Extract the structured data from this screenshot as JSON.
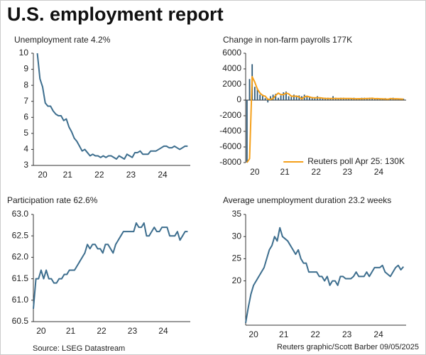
{
  "title": "U.S. employment report",
  "source": "Source: LSEG Datastream",
  "credit": "Reuters graphic/Scott Barber 09/05/2025",
  "chart_data": [
    {
      "type": "line",
      "title": "Unemployment rate 4.2%",
      "color": "#3d6e8e",
      "values": [
        10,
        8.4,
        7.9,
        6.9,
        6.7,
        6.7,
        6.4,
        6.2,
        6.1,
        6.1,
        5.8,
        5.9,
        5.4,
        5.1,
        4.7,
        4.5,
        4.2,
        3.9,
        4.0,
        3.8,
        3.6,
        3.7,
        3.6,
        3.6,
        3.5,
        3.6,
        3.5,
        3.6,
        3.6,
        3.5,
        3.4,
        3.6,
        3.5,
        3.4,
        3.7,
        3.6,
        3.5,
        3.8,
        3.8,
        3.9,
        3.7,
        3.7,
        3.7,
        3.9,
        3.9,
        3.9,
        4.0,
        4.1,
        4.2,
        4.2,
        4.1,
        4.1,
        4.2,
        4.1,
        4.0,
        4.1,
        4.2,
        4.2
      ],
      "xlim": [
        -1.5,
        58
      ],
      "xticks": [
        {
          "value": 2,
          "label": "20"
        },
        {
          "value": 11.5,
          "label": "21"
        },
        {
          "value": 23.5,
          "label": "22"
        },
        {
          "value": 35.5,
          "label": "23"
        },
        {
          "value": 47.5,
          "label": "24"
        }
      ],
      "ylim": [
        3,
        10
      ],
      "yticks": [
        3,
        4,
        5,
        6,
        7,
        8,
        9,
        10
      ]
    },
    {
      "type": "bar",
      "title": "Change in non-farm payrolls 177K",
      "legend": "lower right",
      "series": [
        {
          "type": "bar",
          "color": "#2d5877",
          "values": [
            -8000,
            2700,
            4600,
            1700,
            1500,
            700,
            700,
            250,
            -300,
            500,
            700,
            800,
            300,
            600,
            1000,
            1100,
            500,
            400,
            700,
            600,
            600,
            500,
            700,
            400,
            400,
            400,
            300,
            500,
            300,
            300,
            300,
            300,
            200,
            500,
            300,
            200,
            300,
            300,
            200,
            200,
            200,
            300,
            150,
            200,
            300,
            300,
            250,
            300,
            150,
            200,
            100,
            150,
            150,
            250,
            50,
            250,
            300,
            150,
            150,
            230,
            177
          ]
        },
        {
          "type": "line",
          "name": "Reuters poll Apr 25: 130K",
          "color": "#f5a01a",
          "values": [
            -8000,
            -7500,
            3000,
            2300,
            1400,
            900,
            600,
            500,
            100,
            100,
            200,
            600,
            900,
            700,
            700,
            900,
            800,
            500,
            500,
            500,
            400,
            150,
            400,
            500,
            400,
            300,
            300,
            300,
            300,
            250,
            200,
            200,
            200,
            200,
            200,
            200,
            200,
            200,
            200,
            200,
            200,
            170,
            170,
            180,
            170,
            180,
            200,
            200,
            240,
            180,
            190,
            175,
            165,
            140,
            110,
            200,
            160,
            170,
            160,
            135,
            130
          ]
        }
      ],
      "xlim": [
        -0.5,
        61
      ],
      "xticks": [
        {
          "value": 3,
          "label": "20"
        },
        {
          "value": 14.5,
          "label": "21"
        },
        {
          "value": 26.5,
          "label": "22"
        },
        {
          "value": 38.5,
          "label": "23"
        },
        {
          "value": 50.5,
          "label": "24"
        }
      ],
      "ylim": [
        -8000,
        6000
      ],
      "yticks": [
        -8000,
        -6000,
        -4000,
        -2000,
        0,
        2000,
        4000,
        6000
      ]
    },
    {
      "type": "line",
      "title": "Participation rate 62.6%",
      "color": "#3d6e8e",
      "values": [
        60.8,
        61.5,
        61.5,
        61.7,
        61.5,
        61.7,
        61.5,
        61.5,
        61.4,
        61.4,
        61.5,
        61.5,
        61.6,
        61.6,
        61.7,
        61.7,
        61.7,
        61.8,
        61.9,
        62.0,
        62.1,
        62.3,
        62.2,
        62.3,
        62.3,
        62.2,
        62.2,
        62.1,
        62.3,
        62.3,
        62.2,
        62.1,
        62.3,
        62.4,
        62.5,
        62.6,
        62.6,
        62.6,
        62.6,
        62.6,
        62.8,
        62.7,
        62.7,
        62.8,
        62.5,
        62.5,
        62.6,
        62.7,
        62.6,
        62.6,
        62.7,
        62.7,
        62.7,
        62.5,
        62.5,
        62.5,
        62.6,
        62.4,
        62.5,
        62.6,
        62.6
      ],
      "xlim": [
        0,
        61
      ],
      "xticks": [
        {
          "value": 3,
          "label": "20"
        },
        {
          "value": 14.5,
          "label": "21"
        },
        {
          "value": 26.5,
          "label": "22"
        },
        {
          "value": 38.5,
          "label": "23"
        },
        {
          "value": 50.5,
          "label": "24"
        }
      ],
      "ylim": [
        60.5,
        63
      ],
      "yticks": [
        60.5,
        {
          "value": 61,
          "label": "61.0"
        },
        61.5,
        {
          "value": 62,
          "label": "62.0"
        },
        62.5,
        {
          "value": 63,
          "label": "63.0"
        }
      ]
    },
    {
      "type": "line",
      "title": "Average unemployment duration 23.2 weeks",
      "color": "#3d6e8e",
      "values": [
        10.5,
        14,
        17,
        19,
        20,
        21,
        22,
        23,
        25,
        27,
        28,
        30,
        29,
        32,
        30,
        29.5,
        29,
        28,
        27,
        26,
        27,
        25,
        24,
        24,
        22,
        22,
        22,
        22,
        21,
        21,
        20,
        21,
        19,
        20,
        20,
        19,
        21,
        21,
        20.5,
        20.5,
        20.5,
        21,
        22,
        21,
        21,
        21,
        22,
        21,
        22,
        23,
        23,
        23,
        23.5,
        22,
        21.5,
        21,
        22,
        23,
        23.5,
        22.5,
        23.2
      ],
      "xlim": [
        0,
        61
      ],
      "xticks": [
        {
          "value": 3,
          "label": "20"
        },
        {
          "value": 14.5,
          "label": "21"
        },
        {
          "value": 26.5,
          "label": "22"
        },
        {
          "value": 38.5,
          "label": "23"
        },
        {
          "value": 50.5,
          "label": "24"
        }
      ],
      "ylim": [
        10,
        35
      ],
      "yticks": [
        20,
        25,
        30,
        35
      ]
    }
  ]
}
